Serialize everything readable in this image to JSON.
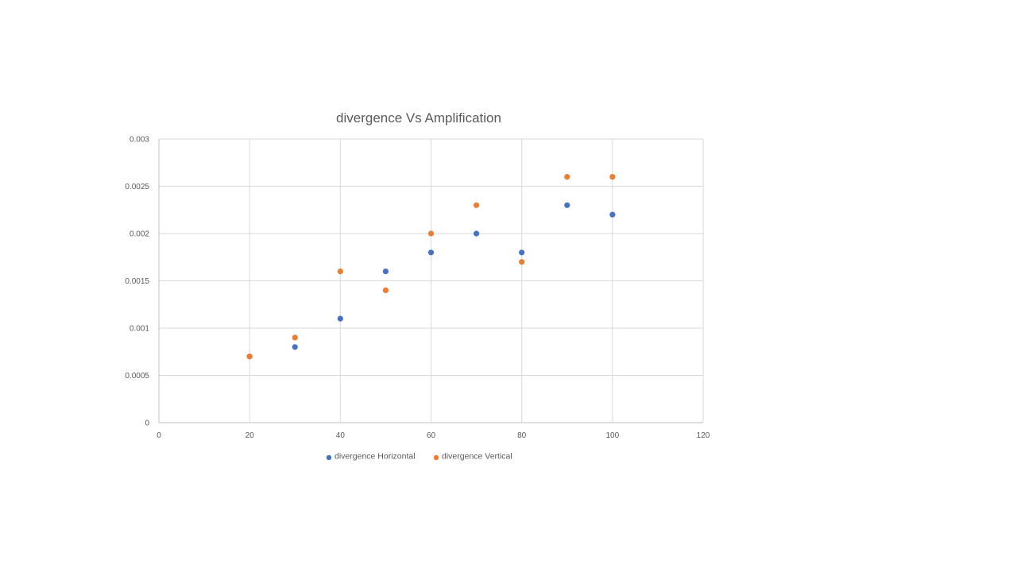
{
  "chart_data": {
    "type": "scatter",
    "title": "divergence Vs Amplification",
    "xlabel": "",
    "ylabel": "",
    "xlim": [
      0,
      120
    ],
    "ylim": [
      0,
      0.003
    ],
    "x_ticks": [
      0,
      20,
      40,
      60,
      80,
      100,
      120
    ],
    "y_ticks": [
      0,
      0.0005,
      0.001,
      0.0015,
      0.002,
      0.0025,
      0.003
    ],
    "grid": true,
    "legend_position": "bottom",
    "series": [
      {
        "name": "divergence Horizontal",
        "color": "#4472c4",
        "points": [
          {
            "x": 20,
            "y": 0.0007
          },
          {
            "x": 30,
            "y": 0.0008
          },
          {
            "x": 40,
            "y": 0.0011
          },
          {
            "x": 50,
            "y": 0.0016
          },
          {
            "x": 60,
            "y": 0.0018
          },
          {
            "x": 70,
            "y": 0.002
          },
          {
            "x": 80,
            "y": 0.0018
          },
          {
            "x": 90,
            "y": 0.0023
          },
          {
            "x": 100,
            "y": 0.0022
          }
        ]
      },
      {
        "name": "divergence Vertical",
        "color": "#ed7d31",
        "points": [
          {
            "x": 20,
            "y": 0.0007
          },
          {
            "x": 30,
            "y": 0.0009
          },
          {
            "x": 40,
            "y": 0.0016
          },
          {
            "x": 50,
            "y": 0.0014
          },
          {
            "x": 60,
            "y": 0.002
          },
          {
            "x": 70,
            "y": 0.0023
          },
          {
            "x": 80,
            "y": 0.0017
          },
          {
            "x": 90,
            "y": 0.0026
          },
          {
            "x": 100,
            "y": 0.0026
          }
        ]
      }
    ]
  }
}
